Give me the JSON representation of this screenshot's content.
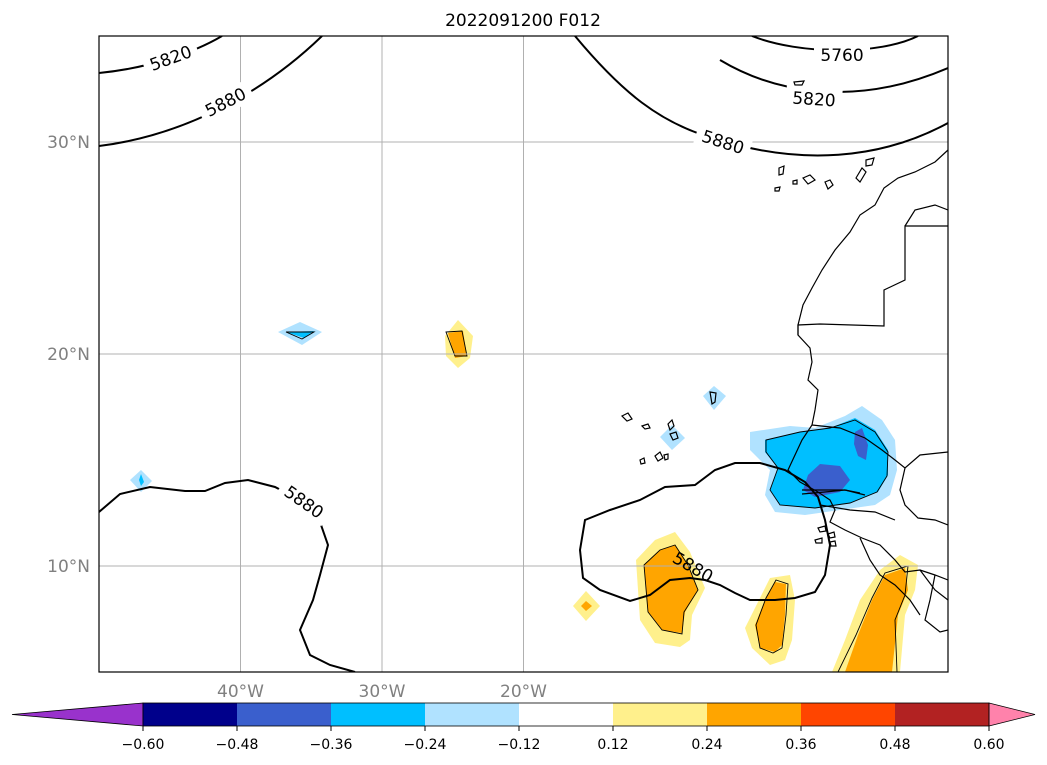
{
  "title": "2022091200 F012",
  "map": {
    "lon_range": [
      -50,
      10
    ],
    "lat_range": [
      5,
      35
    ],
    "lon_ticks": [
      {
        "value": -40,
        "label": "40°W"
      },
      {
        "value": -30,
        "label": "30°W"
      },
      {
        "value": -20,
        "label": "20°W"
      }
    ],
    "lat_ticks": [
      {
        "value": 10,
        "label": "10°N"
      },
      {
        "value": 20,
        "label": "20°N"
      },
      {
        "value": 30,
        "label": "30°N"
      }
    ],
    "grid": true
  },
  "colorbar": {
    "levels": [
      "−0.60",
      "−0.48",
      "−0.36",
      "−0.24",
      "−0.12",
      "0.12",
      "0.24",
      "0.36",
      "0.48",
      "0.60"
    ],
    "colors": [
      "#9932cc",
      "#00008b",
      "#3a5fcd",
      "#00bfff",
      "#b0e2ff",
      "#ffffff",
      "#fff08c",
      "#ffa500",
      "#ff4500",
      "#b22222",
      "#ff82ab"
    ],
    "extend": "both"
  },
  "contour_labels": [
    "5820",
    "5880",
    "5760",
    "5820",
    "5880",
    "5880",
    "5880"
  ]
}
